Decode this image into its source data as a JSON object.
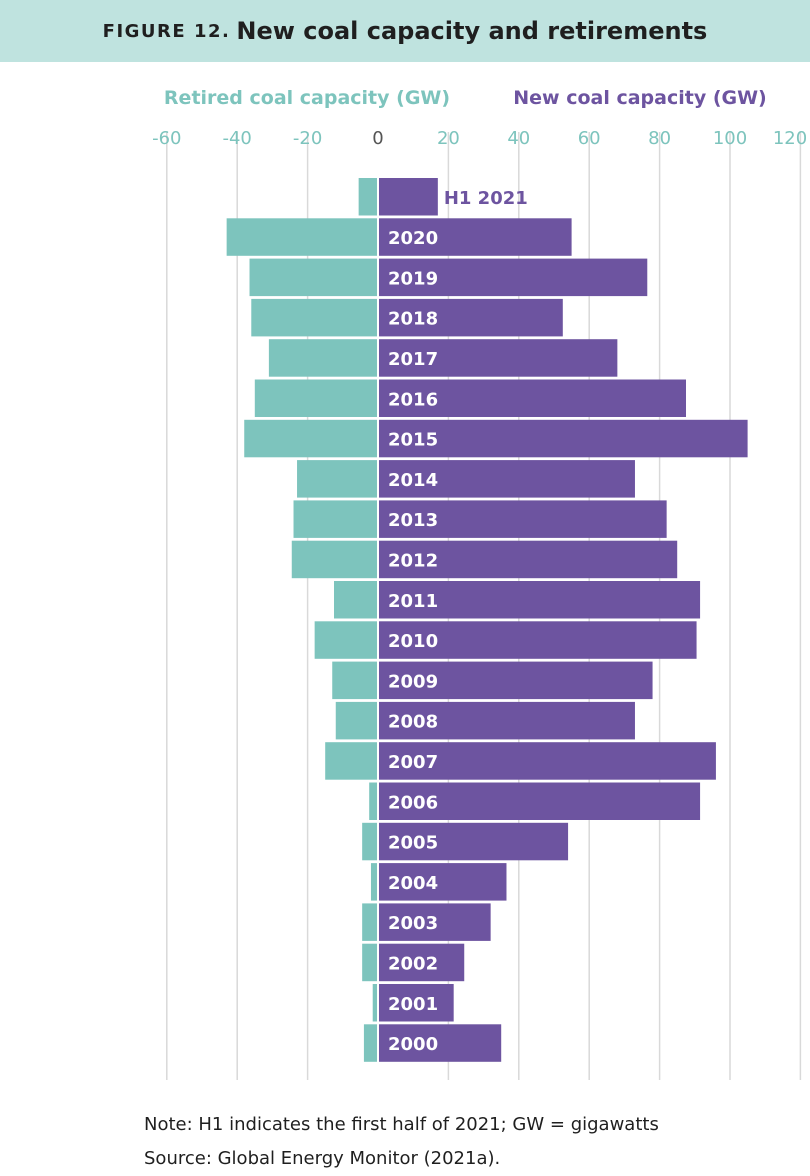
{
  "figure": {
    "label": "FIGURE 12.",
    "title": "New coal capacity and retirements"
  },
  "colors": {
    "retired": "#7dc4bd",
    "new": "#6d54a0",
    "header_bg": "#bfe3df",
    "grid": "#d9d9d9",
    "tick_text": "#7dc4bd"
  },
  "notes": {
    "note": "Note: H1 indicates the first half of 2021; GW = gigawatts",
    "source": "Source: Global Energy Monitor (2021a)."
  },
  "chart_data": {
    "type": "bar",
    "orientation": "horizontal",
    "layout": "diverging",
    "categories": [
      "H1 2021",
      "2020",
      "2019",
      "2018",
      "2017",
      "2016",
      "2015",
      "2014",
      "2013",
      "2012",
      "2011",
      "2010",
      "2009",
      "2008",
      "2007",
      "2006",
      "2005",
      "2004",
      "2003",
      "2002",
      "2001",
      "2000"
    ],
    "series": [
      {
        "name": "Retired coal capacity (GW)",
        "values": [
          -5.5,
          -43,
          -36.5,
          -36,
          -31,
          -35,
          -38,
          -23,
          -24,
          -24.5,
          -12.5,
          -18,
          -13,
          -12,
          -15,
          -2.5,
          -4.5,
          -2,
          -4.5,
          -4.5,
          -1.5,
          -4
        ]
      },
      {
        "name": "New coal capacity (GW)",
        "values": [
          17,
          55,
          76.5,
          52.5,
          68,
          87.5,
          105,
          73,
          82,
          85,
          91.5,
          90.5,
          78,
          73,
          96,
          91.5,
          54,
          36.5,
          32,
          24.5,
          21.5,
          35
        ]
      }
    ],
    "xticks": [
      -60,
      -40,
      -20,
      0,
      20,
      40,
      60,
      80,
      100,
      120
    ],
    "xlim": [
      -60,
      120
    ],
    "grid": true,
    "legend_position": "top"
  }
}
